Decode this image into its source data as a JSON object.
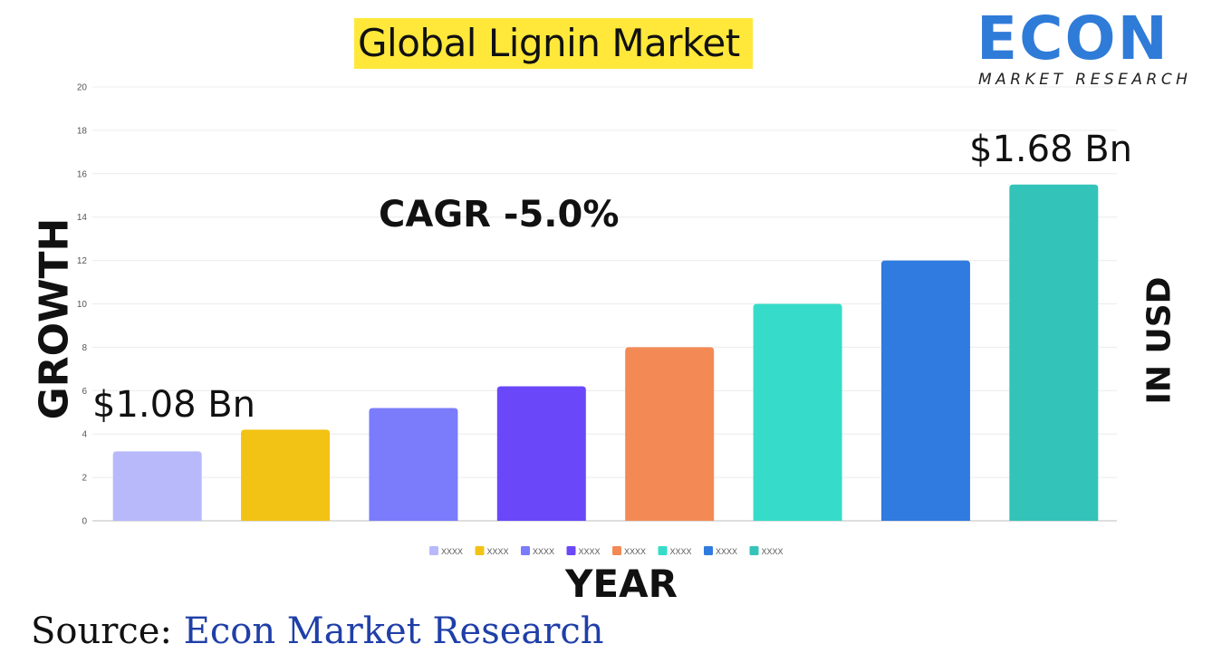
{
  "title": "Global Lignin Market",
  "logo": {
    "word": "ECON",
    "subtitle": "MARKET RESEARCH",
    "colors": {
      "primary": "#2f7bd8",
      "accent": "#f2c811"
    }
  },
  "annotations": {
    "cagr": "CAGR -5.0%",
    "start_value": "$1.08 Bn",
    "end_value": "$1.68 Bn"
  },
  "unit_label": "IN USD",
  "source": {
    "prefix": "Source: ",
    "name": "Econ Market Research"
  },
  "chart_data": {
    "type": "bar",
    "xlabel": "YEAR",
    "ylabel": "GROWTH",
    "ylim": [
      0,
      20
    ],
    "yticks": [
      0,
      2,
      4,
      6,
      8,
      10,
      12,
      14,
      16,
      18,
      20
    ],
    "grid": true,
    "legend_position": "bottom",
    "categories": [
      "XXXX",
      "XXXX",
      "XXXX",
      "XXXX",
      "XXXX",
      "XXXX",
      "XXXX",
      "XXXX"
    ],
    "values": [
      3.2,
      4.2,
      5.2,
      6.2,
      8.0,
      10.0,
      12.0,
      15.5
    ],
    "colors": [
      "#b8b9fb",
      "#f2c314",
      "#7a7cfb",
      "#6a48fa",
      "#f38a55",
      "#36dcc9",
      "#2f7bdf",
      "#34c3b9"
    ]
  }
}
